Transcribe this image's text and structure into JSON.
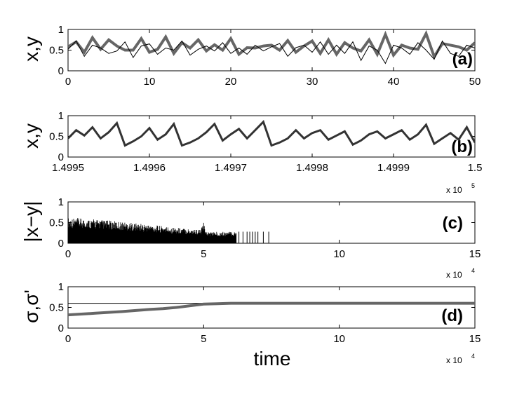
{
  "chart_data": [
    {
      "type": "line",
      "panel_label": "(a)",
      "ylabel": "x,y",
      "xlim": [
        0,
        50
      ],
      "ylim": [
        0,
        1
      ],
      "xticks": [
        "0",
        "10",
        "20",
        "30",
        "40",
        "50"
      ],
      "yticks": [
        "0",
        "0.5",
        "1"
      ],
      "multiplier": "",
      "multiplier_exp": "",
      "series": [
        {
          "color": "#666666",
          "x": [
            0,
            1,
            2,
            3,
            4,
            5,
            6,
            7,
            8,
            9,
            10,
            11,
            12,
            13,
            14,
            15,
            16,
            17,
            18,
            19,
            20,
            21,
            22,
            23,
            24,
            25,
            26,
            27,
            28,
            29,
            30,
            31,
            32,
            33,
            34,
            35,
            36,
            37,
            38,
            39,
            40,
            41,
            42,
            43,
            44,
            45,
            46,
            47,
            48,
            49,
            50
          ],
          "values": [
            0.58,
            0.7,
            0.45,
            0.8,
            0.52,
            0.75,
            0.6,
            0.5,
            0.5,
            0.78,
            0.45,
            0.52,
            0.82,
            0.42,
            0.68,
            0.55,
            0.75,
            0.48,
            0.63,
            0.5,
            0.78,
            0.4,
            0.56,
            0.55,
            0.6,
            0.62,
            0.5,
            0.73,
            0.45,
            0.6,
            0.72,
            0.42,
            0.75,
            0.4,
            0.68,
            0.55,
            0.48,
            0.75,
            0.4,
            0.88,
            0.38,
            0.62,
            0.55,
            0.52,
            0.9,
            0.34,
            0.66,
            0.62,
            0.58,
            0.5,
            0.68
          ]
        },
        {
          "color": "#000000",
          "x": [
            0,
            1,
            2,
            3,
            4,
            5,
            6,
            7,
            8,
            9,
            10,
            11,
            12,
            13,
            14,
            15,
            16,
            17,
            18,
            19,
            20,
            21,
            22,
            23,
            24,
            25,
            26,
            27,
            28,
            29,
            30,
            31,
            32,
            33,
            34,
            35,
            36,
            37,
            38,
            39,
            40,
            41,
            42,
            43,
            44,
            45,
            46,
            47,
            48,
            49,
            50
          ],
          "values": [
            0.52,
            0.72,
            0.35,
            0.62,
            0.55,
            0.42,
            0.48,
            0.7,
            0.32,
            0.6,
            0.65,
            0.4,
            0.55,
            0.5,
            0.72,
            0.38,
            0.52,
            0.6,
            0.48,
            0.68,
            0.42,
            0.55,
            0.4,
            0.62,
            0.48,
            0.58,
            0.66,
            0.35,
            0.56,
            0.62,
            0.45,
            0.7,
            0.4,
            0.62,
            0.42,
            0.7,
            0.25,
            0.6,
            0.5,
            0.18,
            0.62,
            0.55,
            0.4,
            0.68,
            0.5,
            0.28,
            0.72,
            0.42,
            0.35,
            0.62,
            0.55
          ]
        }
      ]
    },
    {
      "type": "line",
      "panel_label": "(b)",
      "ylabel": "x,y",
      "xlim": [
        1.4995,
        1.5
      ],
      "ylim": [
        0,
        1
      ],
      "xticks": [
        "1.4995",
        "1.4996",
        "1.4997",
        "1.4998",
        "1.4999",
        "1.5"
      ],
      "yticks": [
        "0",
        "0.5",
        "1"
      ],
      "multiplier": "x 10",
      "multiplier_exp": "5",
      "series": [
        {
          "color": "#333333",
          "x": [
            1.4995,
            1.49951,
            1.49952,
            1.49953,
            1.49954,
            1.49955,
            1.49956,
            1.49957,
            1.49958,
            1.49959,
            1.4996,
            1.49961,
            1.49962,
            1.49963,
            1.49964,
            1.49965,
            1.49966,
            1.49967,
            1.49968,
            1.49969,
            1.4997,
            1.49971,
            1.49972,
            1.49973,
            1.49974,
            1.49975,
            1.49976,
            1.49977,
            1.49978,
            1.49979,
            1.4998,
            1.49981,
            1.49982,
            1.49983,
            1.49984,
            1.49985,
            1.49986,
            1.49987,
            1.49988,
            1.49989,
            1.4999,
            1.49991,
            1.49992,
            1.49993,
            1.49994,
            1.49995,
            1.49996,
            1.49997,
            1.49998,
            1.49999,
            1.5
          ],
          "values": [
            0.45,
            0.65,
            0.52,
            0.72,
            0.45,
            0.6,
            0.82,
            0.28,
            0.38,
            0.5,
            0.7,
            0.42,
            0.55,
            0.8,
            0.28,
            0.35,
            0.45,
            0.6,
            0.8,
            0.4,
            0.55,
            0.68,
            0.45,
            0.65,
            0.85,
            0.28,
            0.35,
            0.45,
            0.65,
            0.45,
            0.58,
            0.65,
            0.42,
            0.52,
            0.62,
            0.3,
            0.4,
            0.55,
            0.62,
            0.45,
            0.55,
            0.65,
            0.42,
            0.55,
            0.78,
            0.32,
            0.45,
            0.58,
            0.42,
            0.72,
            0.35
          ]
        }
      ]
    },
    {
      "type": "bar",
      "panel_label": "(c)",
      "ylabel": "|x−y|",
      "xlim": [
        0,
        15
      ],
      "ylim": [
        0,
        1
      ],
      "xticks": [
        "0",
        "5",
        "10",
        "15"
      ],
      "yticks": [
        "0",
        "0.5",
        "1"
      ],
      "multiplier": "x 10",
      "multiplier_exp": "4",
      "envelope": {
        "x": [
          0,
          1,
          2,
          3,
          4,
          4.9,
          5.0,
          5.1,
          6.0,
          6.2
        ],
        "values": [
          0.62,
          0.58,
          0.52,
          0.45,
          0.38,
          0.33,
          0.5,
          0.28,
          0.28,
          0.28
        ]
      },
      "sparse_spikes": {
        "x": [
          6.3,
          6.45,
          6.6,
          6.7,
          6.8,
          6.9,
          7.0,
          7.2,
          7.4
        ],
        "values": [
          0.28,
          0.28,
          0.28,
          0.28,
          0.28,
          0.28,
          0.28,
          0.28,
          0.28
        ]
      }
    },
    {
      "type": "line",
      "panel_label": "(d)",
      "ylabel": "σ,σ'",
      "xlabel": "time",
      "xlim": [
        0,
        15
      ],
      "ylim": [
        0,
        1
      ],
      "xticks": [
        "0",
        "5",
        "10",
        "15"
      ],
      "yticks": [
        "0",
        "0.5",
        "1"
      ],
      "multiplier": "x 10",
      "multiplier_exp": "4",
      "hline": 0.6,
      "series": [
        {
          "color": "#666666",
          "x": [
            0,
            1,
            2,
            3,
            3.5,
            4,
            4.5,
            5,
            5.5,
            6,
            8,
            10,
            12,
            15
          ],
          "values": [
            0.32,
            0.36,
            0.4,
            0.45,
            0.47,
            0.5,
            0.54,
            0.58,
            0.59,
            0.6,
            0.6,
            0.6,
            0.6,
            0.6
          ]
        }
      ]
    }
  ]
}
